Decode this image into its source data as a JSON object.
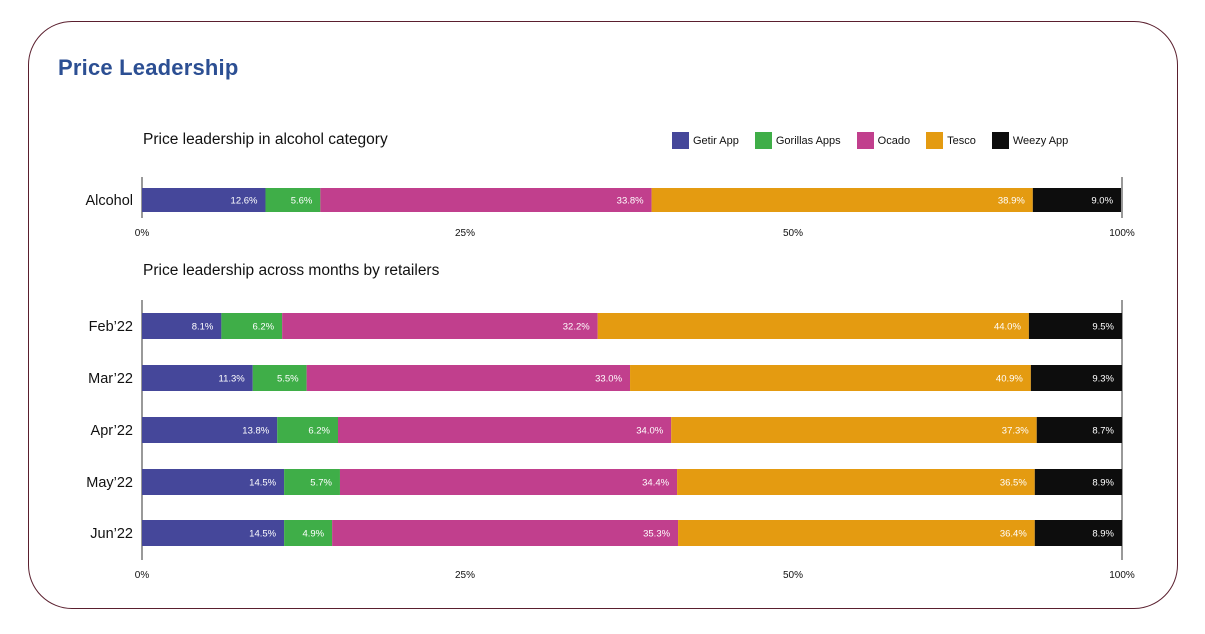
{
  "page_title": "Price Leadership",
  "colors": {
    "Getir App": "#45479a",
    "Gorillas Apps": "#3fae48",
    "Ocado": "#c13f8d",
    "Tesco": "#e49b11",
    "Weezy App": "#0d0d0d"
  },
  "legend": [
    "Getir App",
    "Gorillas Apps",
    "Ocado",
    "Tesco",
    "Weezy App"
  ],
  "chart_data": [
    {
      "type": "bar",
      "orientation": "horizontal",
      "stacked": true,
      "title": "Price leadership in alcohol category",
      "categories": [
        "Alcohol"
      ],
      "series": [
        {
          "name": "Getir App",
          "values": [
            12.6
          ],
          "labels": [
            "12.6%"
          ]
        },
        {
          "name": "Gorillas Apps",
          "values": [
            5.6
          ],
          "labels": [
            "5.6%"
          ]
        },
        {
          "name": "Ocado",
          "values": [
            33.8
          ],
          "labels": [
            "33.8%"
          ]
        },
        {
          "name": "Tesco",
          "values": [
            38.9
          ],
          "labels": [
            "38.9%"
          ]
        },
        {
          "name": "Weezy App",
          "values": [
            9.0
          ],
          "labels": [
            "9.0%"
          ]
        }
      ],
      "x_ticks": [
        "0%",
        "25%",
        "50%",
        "100%"
      ],
      "xlim": [
        0,
        100
      ],
      "legend_position": "top-right"
    },
    {
      "type": "bar",
      "orientation": "horizontal",
      "stacked": true,
      "title": "Price leadership across months by retailers",
      "categories": [
        "Feb’22",
        "Mar’22",
        "Apr’22",
        "May’22",
        "Jun’22"
      ],
      "series": [
        {
          "name": "Getir App",
          "values": [
            8.1,
            11.3,
            13.8,
            14.5,
            14.5
          ],
          "labels": [
            "8.1%",
            "11.3%",
            "13.8%",
            "14.5%",
            "14.5%"
          ]
        },
        {
          "name": "Gorillas Apps",
          "values": [
            6.2,
            5.5,
            6.2,
            5.7,
            4.9
          ],
          "labels": [
            "6.2%",
            "5.5%",
            "6.2%",
            "5.7%",
            "4.9%"
          ]
        },
        {
          "name": "Ocado",
          "values": [
            32.2,
            33.0,
            34.0,
            34.4,
            35.3
          ],
          "labels": [
            "32.2%",
            "33.0%",
            "34.0%",
            "34.4%",
            "35.3%"
          ]
        },
        {
          "name": "Tesco",
          "values": [
            44.0,
            40.9,
            37.3,
            36.5,
            36.4
          ],
          "labels": [
            "44.0%",
            "40.9%",
            "37.3%",
            "36.5%",
            "36.4%"
          ]
        },
        {
          "name": "Weezy App",
          "values": [
            9.5,
            9.3,
            8.7,
            8.9,
            8.9
          ],
          "labels": [
            "9.5%",
            "9.3%",
            "8.7%",
            "8.9%",
            "8.9%"
          ]
        }
      ],
      "x_ticks": [
        "0%",
        "25%",
        "50%",
        "100%"
      ],
      "xlim": [
        0,
        100
      ]
    }
  ]
}
